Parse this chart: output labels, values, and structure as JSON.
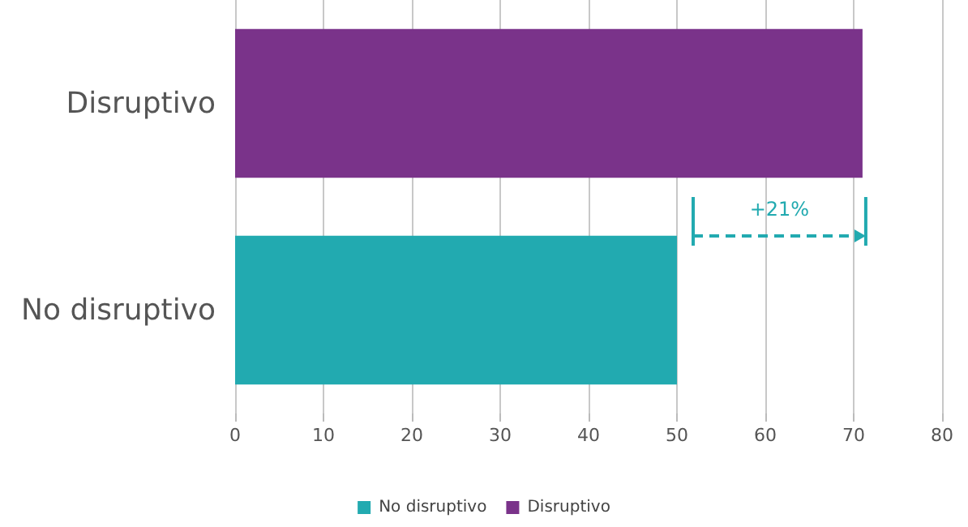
{
  "chart_data": {
    "type": "bar",
    "orientation": "horizontal",
    "stacked": true,
    "categories": [
      "Disruptivo",
      "No disruptivo"
    ],
    "series": [
      {
        "name": "No disruptivo",
        "color": "#22aab0",
        "values": [
          null,
          50
        ]
      },
      {
        "name": "Disruptivo",
        "color": "#7a338a",
        "values": [
          71,
          null
        ]
      }
    ],
    "xlim": [
      0,
      80
    ],
    "xticks": [
      0,
      10,
      20,
      30,
      40,
      50,
      60,
      70,
      80
    ],
    "grid": "x",
    "legend": "bottom",
    "annotations": [
      "+21%"
    ]
  }
}
